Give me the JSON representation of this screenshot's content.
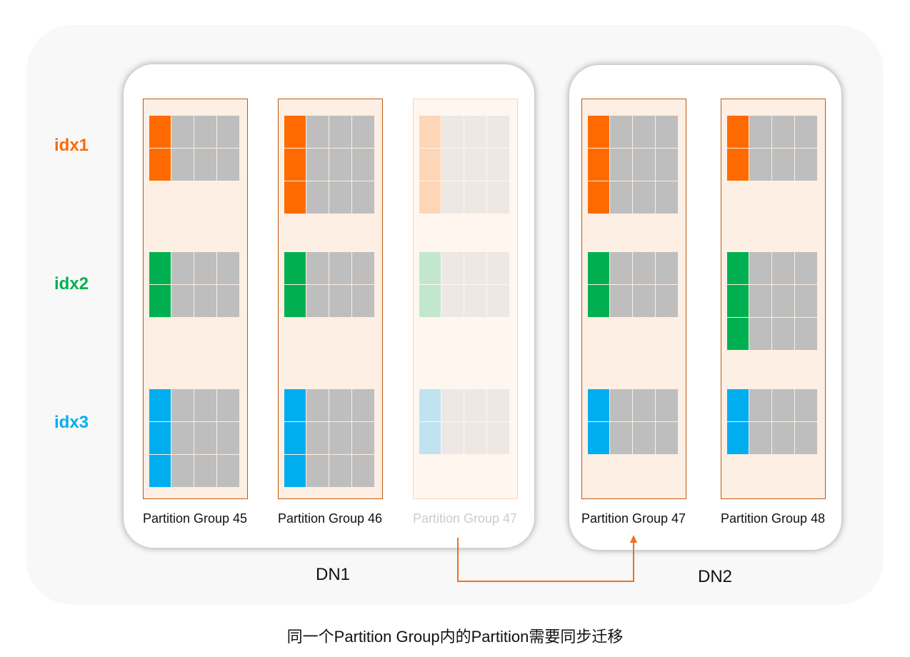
{
  "colors": {
    "idx1": "#ff6a00",
    "idx2": "#00b050",
    "idx3": "#00adef",
    "empty_cell": "#bebebe",
    "group_fill": "#fdefe3",
    "group_border": "#c05a10",
    "arrow": "#f07020"
  },
  "index_labels": [
    {
      "text": "idx1",
      "color": "#ff6a00"
    },
    {
      "text": "idx2",
      "color": "#00b050"
    },
    {
      "text": "idx3",
      "color": "#00adef"
    }
  ],
  "data_nodes": [
    {
      "label": "DN1"
    },
    {
      "label": "DN2"
    }
  ],
  "partition_groups": [
    {
      "label": "Partition Group 45",
      "node": "DN1",
      "faded": false,
      "rows": [
        2,
        2,
        3
      ]
    },
    {
      "label": "Partition Group 46",
      "node": "DN1",
      "faded": false,
      "rows": [
        3,
        2,
        3
      ]
    },
    {
      "label": "Partition Group 47",
      "node": "DN1",
      "faded": true,
      "rows": [
        3,
        2,
        2
      ]
    },
    {
      "label": "Partition Group 47",
      "node": "DN2",
      "faded": false,
      "rows": [
        3,
        2,
        2
      ]
    },
    {
      "label": "Partition Group 48",
      "node": "DN2",
      "faded": false,
      "rows": [
        2,
        3,
        2
      ]
    }
  ],
  "caption": "同一个Partition Group内的Partition需要同步迁移"
}
